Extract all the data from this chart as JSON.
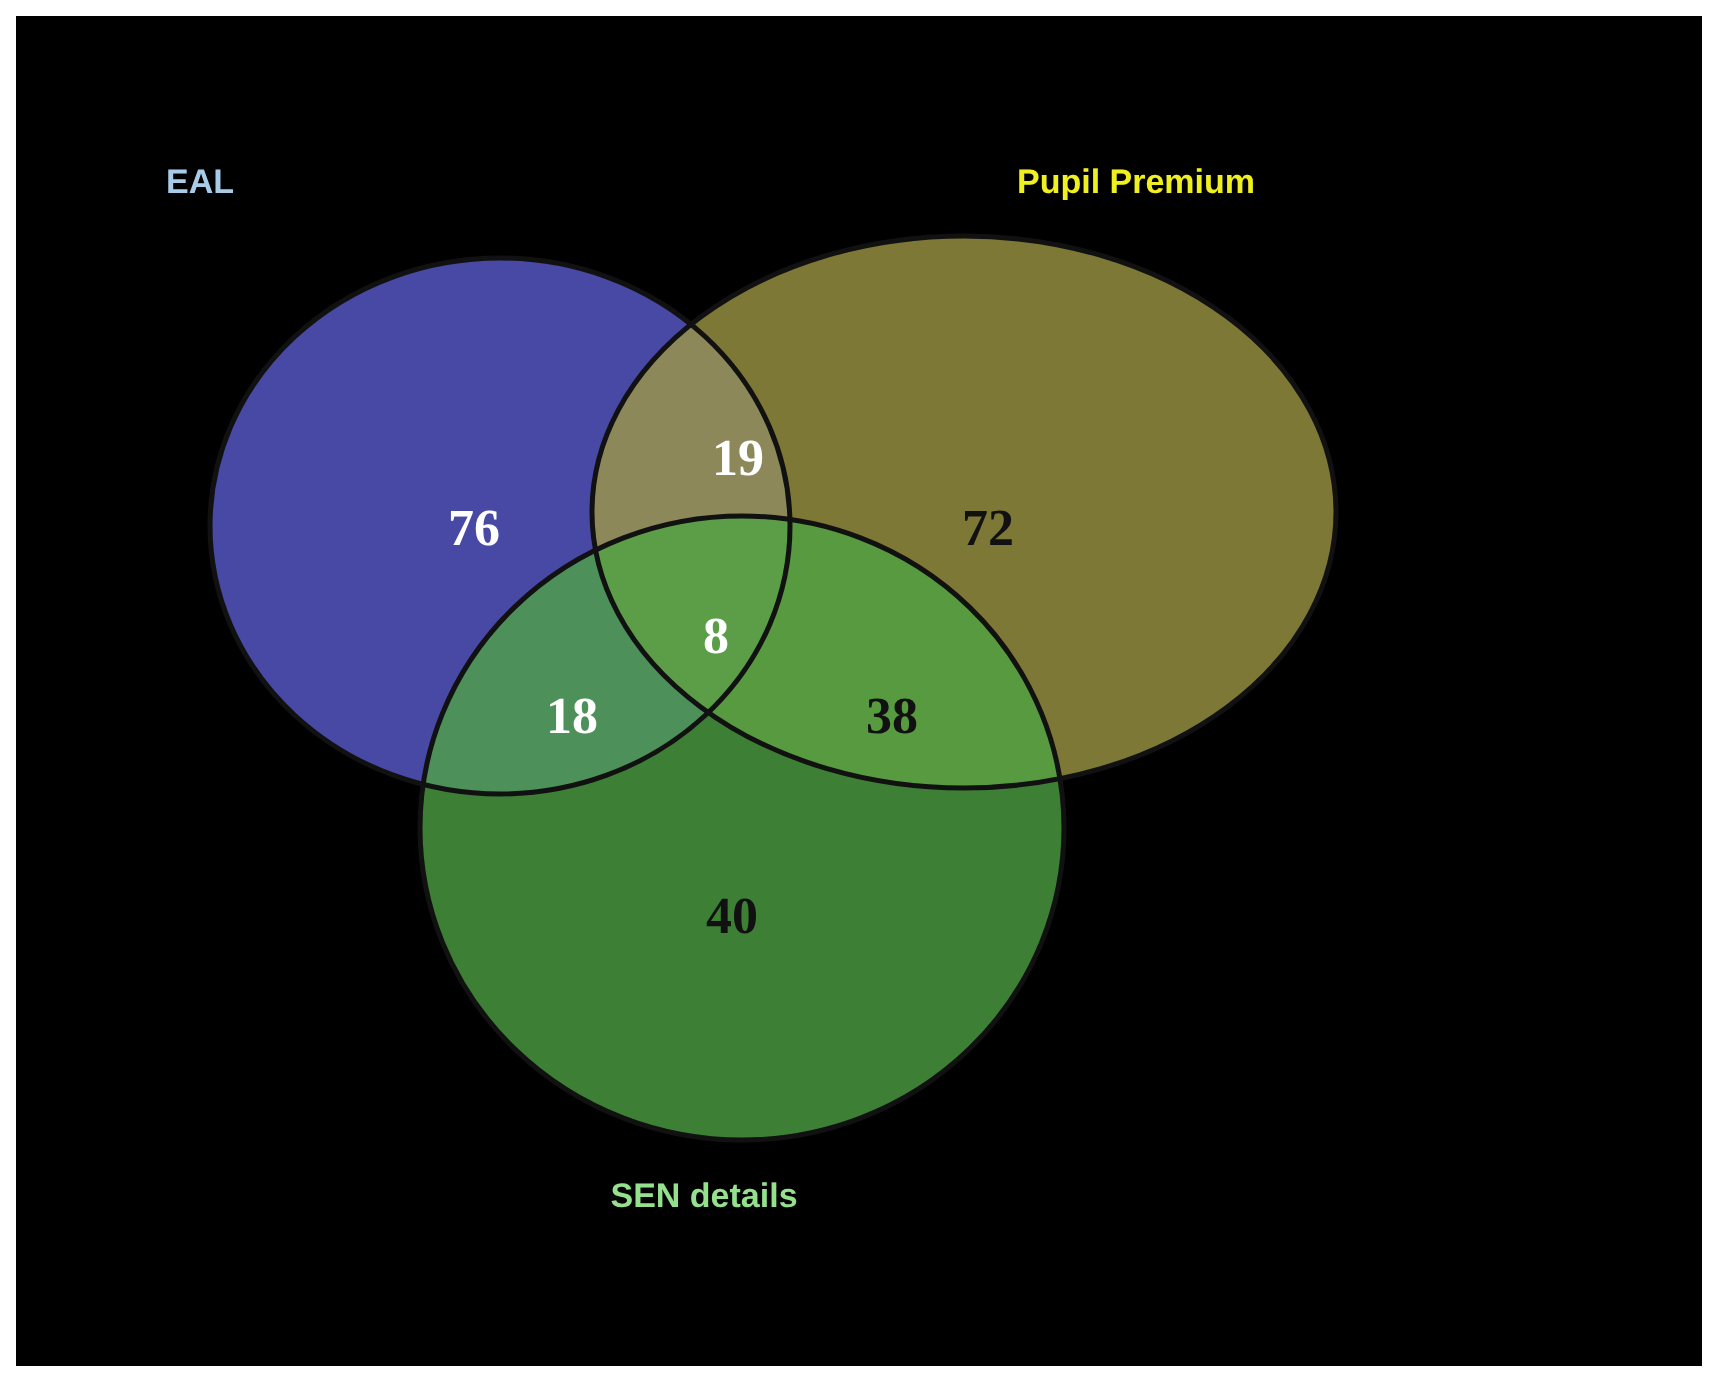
{
  "chart_data": {
    "type": "other",
    "categories": [
      null,
      null,
      null,
      null,
      null,
      null,
      null
    ],
    "values": [
      76,
      19,
      72,
      8,
      18,
      38,
      40
    ],
    "data_labels": true,
    "annotations": [
      "EAL",
      "Pupil Premium",
      "SEN details"
    ]
  }
}
